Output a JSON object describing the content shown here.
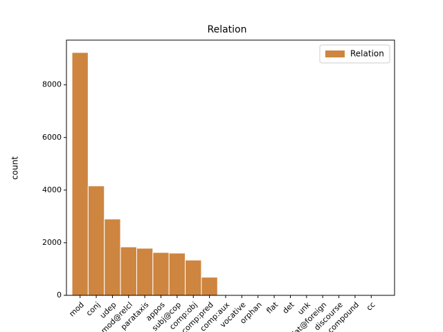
{
  "chart_data": {
    "type": "bar",
    "title": "Relation",
    "y_label": "count",
    "categories": [
      "mod",
      "conj",
      "udep",
      "mod@relcl",
      "parataxis",
      "appos",
      "subj@cop",
      "comp:obj",
      "comp:pred",
      "comp:aux",
      "vocative",
      "orphan",
      "flat",
      "det",
      "unk",
      "flat@foreign",
      "discourse",
      "compound",
      "cc"
    ],
    "series": [
      {
        "name": "Relation",
        "color": "#cd853f",
        "values": [
          9230,
          4160,
          2900,
          1840,
          1790,
          1630,
          1605,
          1340,
          690,
          20,
          10,
          8,
          5,
          4,
          3,
          2,
          2,
          1,
          1
        ]
      }
    ],
    "ylim": [
      0,
      9700
    ],
    "yticks": [
      0,
      2000,
      4000,
      6000,
      8000
    ],
    "legend": "upper right"
  }
}
